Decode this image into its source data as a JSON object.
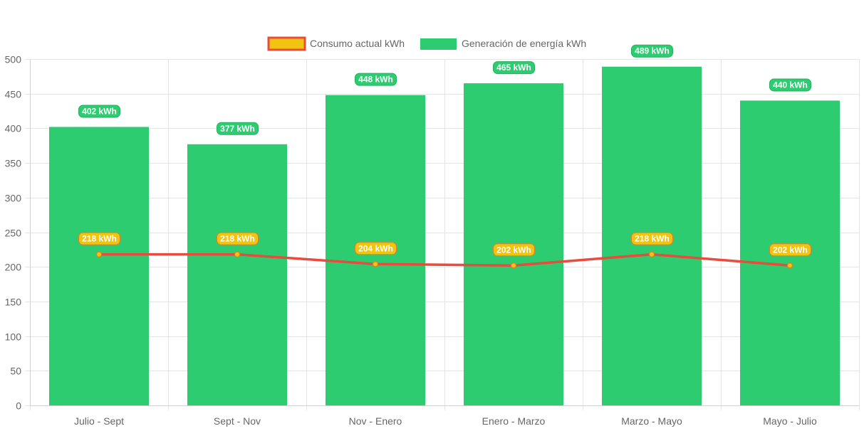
{
  "chart_data": {
    "type": "bar",
    "title": "",
    "xlabel": "",
    "ylabel": "",
    "ylim": [
      0,
      500
    ],
    "yticks": [
      0,
      50,
      100,
      150,
      200,
      250,
      300,
      350,
      400,
      450,
      500
    ],
    "grid": true,
    "legend_position": "top-center",
    "categories": [
      "Julio - Sept",
      "Sept - Nov",
      "Nov - Enero",
      "Enero - Marzo",
      "Marzo - Mayo",
      "Mayo - Julio"
    ],
    "series": [
      {
        "name": "Consumo actual kWh",
        "type": "line",
        "values": [
          218,
          218,
          204,
          202,
          218,
          202
        ],
        "labels": [
          "218 kWh",
          "218 kWh",
          "204 kWh",
          "202 kWh",
          "218 kWh",
          "202 kWh"
        ],
        "color": "#e74c3c",
        "fill": "#f1c40f"
      },
      {
        "name": "Generación de energía kWh",
        "type": "bar",
        "values": [
          402,
          377,
          448,
          465,
          489,
          440
        ],
        "labels": [
          "402 kWh",
          "377 kWh",
          "448 kWh",
          "465 kWh",
          "489 kWh",
          "440 kWh"
        ],
        "color": "#2ecc71"
      }
    ]
  },
  "colors": {
    "grid": "#e5e5e5",
    "axis": "#d0d0d0",
    "tick_text": "#666666",
    "line_label_bg": "#f1c40f",
    "line_label_border": "#e67e22",
    "bar_label_bg": "#2ecc71"
  }
}
